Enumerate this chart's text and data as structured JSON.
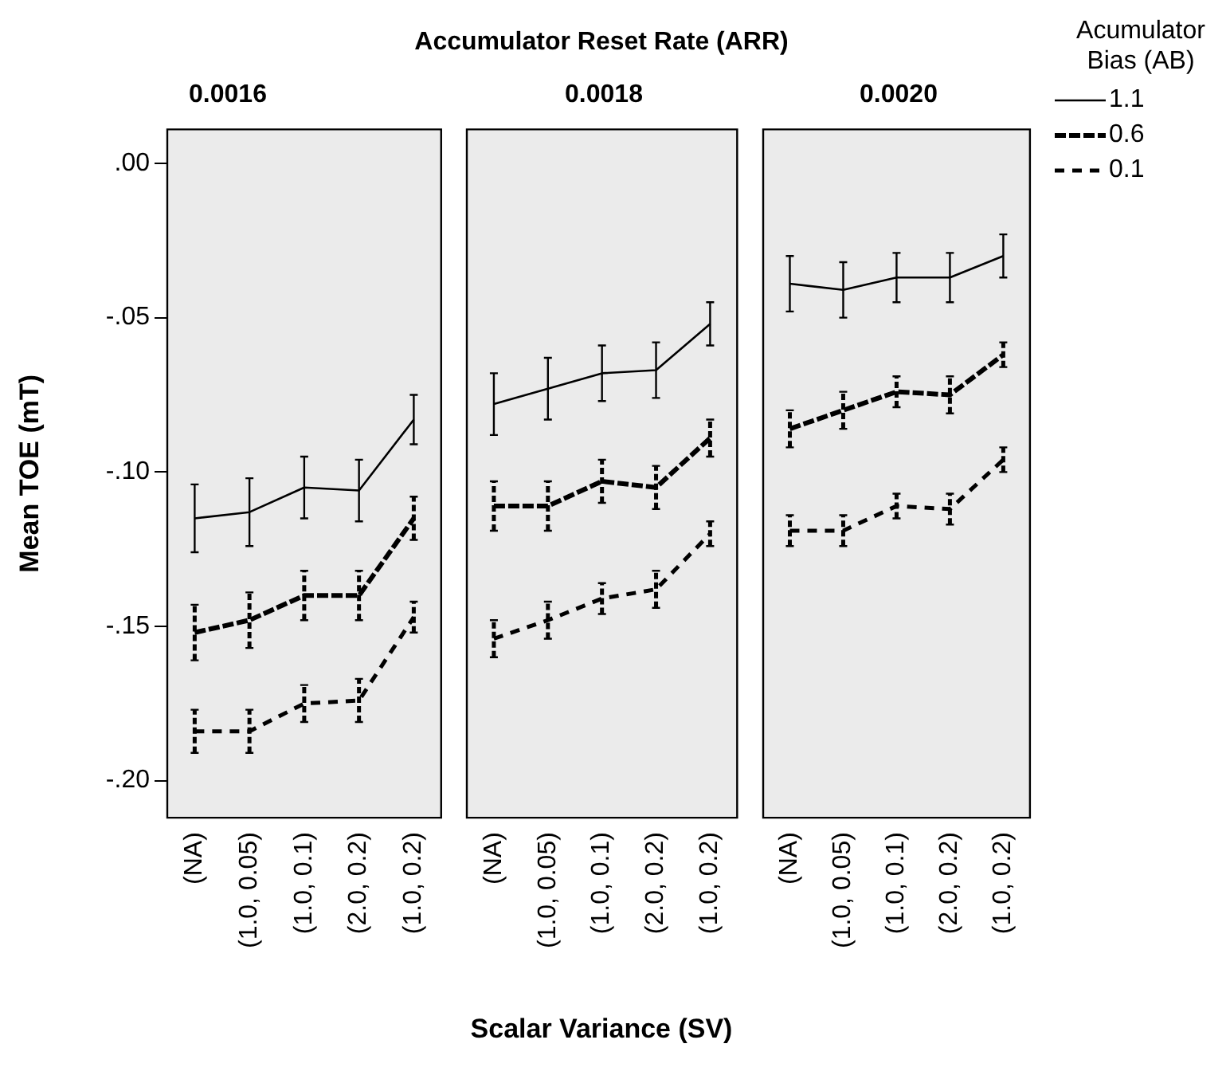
{
  "chart_data": [
    {
      "type": "line",
      "title": "0.0016",
      "ylabel": "Mean TOE (mT)",
      "categories": [
        "(NA)",
        "(1.0, 0.05)",
        "(1.0, 0.1)",
        "(2.0, 0.2)",
        "(1.0, 0.2)"
      ],
      "ylim": [
        -0.212,
        0.011
      ],
      "yticks": [
        {
          "value": -0.2,
          "label": "-.20"
        },
        {
          "value": -0.15,
          "label": "-.15"
        },
        {
          "value": -0.1,
          "label": "-.10"
        },
        {
          "value": -0.05,
          "label": "-.05"
        },
        {
          "value": 0,
          "label": ".00"
        }
      ],
      "marker": "none",
      "series": [
        {
          "color": "#000000",
          "line_style": "solid",
          "values": [
            -0.115,
            -0.113,
            -0.105,
            -0.106,
            -0.083
          ],
          "errors": [
            0.011,
            0.011,
            0.01,
            0.01,
            0.008
          ]
        },
        {
          "color": "#000000",
          "line_style": "dashed",
          "values": [
            -0.152,
            -0.148,
            -0.14,
            -0.14,
            -0.115
          ],
          "errors": [
            0.009,
            0.009,
            0.008,
            0.008,
            0.007
          ]
        },
        {
          "color": "#000000",
          "line_style": "dashed",
          "values": [
            -0.184,
            -0.184,
            -0.175,
            -0.174,
            -0.147
          ],
          "errors": [
            0.007,
            0.007,
            0.006,
            0.007,
            0.005
          ]
        }
      ]
    },
    {
      "type": "line",
      "title": "0.0018",
      "xlabel": "Scalar Variance (SV)",
      "annotations": [
        "Accumulator Reset Rate (ARR)"
      ],
      "categories": [
        "(NA)",
        "(1.0, 0.05)",
        "(1.0, 0.1)",
        "(2.0, 0.2)",
        "(1.0, 0.2)"
      ],
      "ylim": [
        -0.212,
        0.011
      ],
      "tick_labels": "x",
      "marker": "none",
      "series": [
        {
          "color": "#000000",
          "line_style": "solid",
          "values": [
            -0.078,
            -0.073,
            -0.068,
            -0.067,
            -0.052
          ],
          "errors": [
            0.01,
            0.01,
            0.009,
            0.009,
            0.007
          ]
        },
        {
          "color": "#000000",
          "line_style": "dashed",
          "values": [
            -0.111,
            -0.111,
            -0.103,
            -0.105,
            -0.089
          ],
          "errors": [
            0.008,
            0.008,
            0.007,
            0.007,
            0.006
          ]
        },
        {
          "color": "#000000",
          "line_style": "dashed",
          "values": [
            -0.154,
            -0.148,
            -0.141,
            -0.138,
            -0.12
          ],
          "errors": [
            0.006,
            0.006,
            0.005,
            0.006,
            0.004
          ]
        }
      ]
    },
    {
      "type": "line",
      "title": "0.0020",
      "legend": "right",
      "legend_title": "Acumulator Bias (AB)",
      "categories": [
        "(NA)",
        "(1.0, 0.05)",
        "(1.0, 0.1)",
        "(2.0, 0.2)",
        "(1.0, 0.2)"
      ],
      "ylim": [
        -0.212,
        0.011
      ],
      "tick_labels": "x",
      "marker": "none",
      "series": [
        {
          "name": "1.1",
          "color": "#000000",
          "line_style": "solid",
          "values": [
            -0.039,
            -0.041,
            -0.037,
            -0.037,
            -0.03
          ],
          "errors": [
            0.009,
            0.009,
            0.008,
            0.008,
            0.007
          ]
        },
        {
          "name": "0.6",
          "color": "#000000",
          "line_style": "dashed",
          "values": [
            -0.086,
            -0.08,
            -0.074,
            -0.075,
            -0.062
          ],
          "errors": [
            0.006,
            0.006,
            0.005,
            0.006,
            0.004
          ]
        },
        {
          "name": "0.1",
          "color": "#000000",
          "line_style": "dashed",
          "values": [
            -0.119,
            -0.119,
            -0.111,
            -0.112,
            -0.096
          ],
          "errors": [
            0.005,
            0.005,
            0.004,
            0.005,
            0.004
          ]
        }
      ]
    }
  ]
}
